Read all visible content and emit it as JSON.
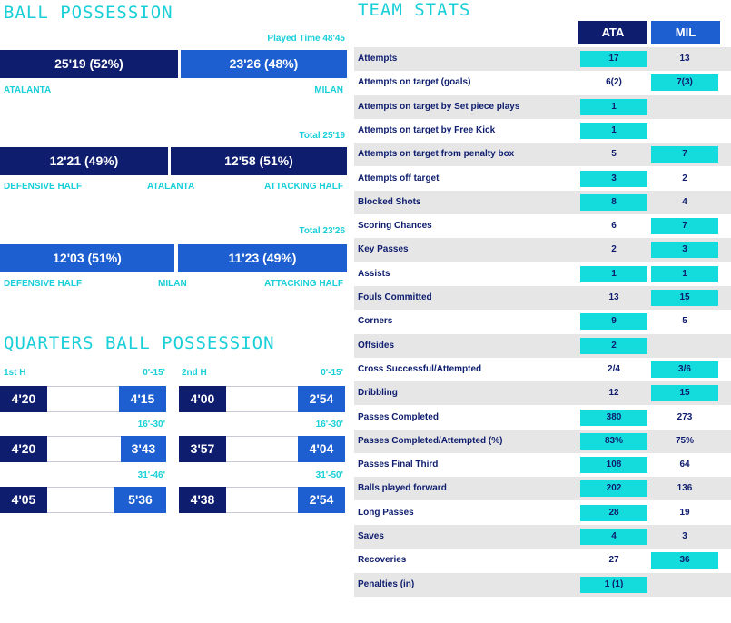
{
  "ball_possession": {
    "title": "BALL POSSESSION",
    "played_time": "Played Time 48'45",
    "home_value": "25'19 (52%)",
    "away_value": "23'26 (48%)",
    "home_fraction": 0.52,
    "home_label": "ATALANTA",
    "away_label": "MILAN",
    "atalanta_split": {
      "total": "Total 25'19",
      "left_value": "12'21 (49%)",
      "right_value": "12'58 (51%)",
      "left_fraction": 0.49,
      "left_label": "DEFENSIVE HALF",
      "mid_label": "ATALANTA",
      "right_label": "ATTACKING HALF"
    },
    "milan_split": {
      "total": "Total 23'26",
      "left_value": "12'03 (51%)",
      "right_value": "11'23 (49%)",
      "left_fraction": 0.51,
      "left_label": "DEFENSIVE HALF",
      "mid_label": "MILAN",
      "right_label": "ATTACKING HALF"
    }
  },
  "quarters": {
    "title": "QUARTERS BALL POSSESSION",
    "first_half": {
      "label": "1st H",
      "rows": [
        {
          "range": "0'-15'",
          "home": "4'20",
          "away": "4'15"
        },
        {
          "range": "16'-30'",
          "home": "4'20",
          "away": "3'43"
        },
        {
          "range": "31'-46'",
          "home": "4'05",
          "away": "5'36"
        }
      ]
    },
    "second_half": {
      "label": "2nd H",
      "rows": [
        {
          "range": "0'-15'",
          "home": "4'00",
          "away": "2'54"
        },
        {
          "range": "16'-30'",
          "home": "3'57",
          "away": "4'04"
        },
        {
          "range": "31'-50'",
          "home": "4'38",
          "away": "2'54"
        }
      ]
    }
  },
  "team_stats": {
    "title": "TEAM STATS",
    "home_code": "ATA",
    "away_code": "MIL",
    "rows": [
      {
        "label": "Attempts",
        "home": "17",
        "away": "13",
        "hl": "home"
      },
      {
        "label": "Attempts on target (goals)",
        "home": "6(2)",
        "away": "7(3)",
        "hl": "away"
      },
      {
        "label": "Attempts on target by Set piece plays",
        "home": "1",
        "away": "",
        "hl": "home"
      },
      {
        "label": "Attempts on target by Free Kick",
        "home": "1",
        "away": "",
        "hl": "home"
      },
      {
        "label": "Attempts on target from penalty box",
        "home": "5",
        "away": "7",
        "hl": "away"
      },
      {
        "label": "Attempts off target",
        "home": "3",
        "away": "2",
        "hl": "home"
      },
      {
        "label": "Blocked Shots",
        "home": "8",
        "away": "4",
        "hl": "home"
      },
      {
        "label": "Scoring Chances",
        "home": "6",
        "away": "7",
        "hl": "away"
      },
      {
        "label": "Key Passes",
        "home": "2",
        "away": "3",
        "hl": "away"
      },
      {
        "label": "Assists",
        "home": "1",
        "away": "1",
        "hl": "both"
      },
      {
        "label": "Fouls Committed",
        "home": "13",
        "away": "15",
        "hl": "away"
      },
      {
        "label": "Corners",
        "home": "9",
        "away": "5",
        "hl": "home"
      },
      {
        "label": "Offsides",
        "home": "2",
        "away": "",
        "hl": "home"
      },
      {
        "label": "Cross Successful/Attempted",
        "home": "2/4",
        "away": "3/6",
        "hl": "away"
      },
      {
        "label": "Dribbling",
        "home": "12",
        "away": "15",
        "hl": "away"
      },
      {
        "label": "Passes Completed",
        "home": "380",
        "away": "273",
        "hl": "home"
      },
      {
        "label": "Passes Completed/Attempted (%)",
        "home": "83%",
        "away": "75%",
        "hl": "home"
      },
      {
        "label": "Passes Final Third",
        "home": "108",
        "away": "64",
        "hl": "home"
      },
      {
        "label": "Balls played forward",
        "home": "202",
        "away": "136",
        "hl": "home"
      },
      {
        "label": "Long Passes",
        "home": "28",
        "away": "19",
        "hl": "home"
      },
      {
        "label": "Saves",
        "home": "4",
        "away": "3",
        "hl": "home"
      },
      {
        "label": "Recoveries",
        "home": "27",
        "away": "36",
        "hl": "away"
      },
      {
        "label": "Penalties (in)",
        "home": "1 (1)",
        "away": "",
        "hl": "home"
      }
    ]
  },
  "colors": {
    "navy": "#0e1d6e",
    "blue": "#1d5fd0",
    "cyan_text": "#19cfd8",
    "cyan_highlight": "#14dcdc",
    "row_shade": "#e6e6e6"
  }
}
